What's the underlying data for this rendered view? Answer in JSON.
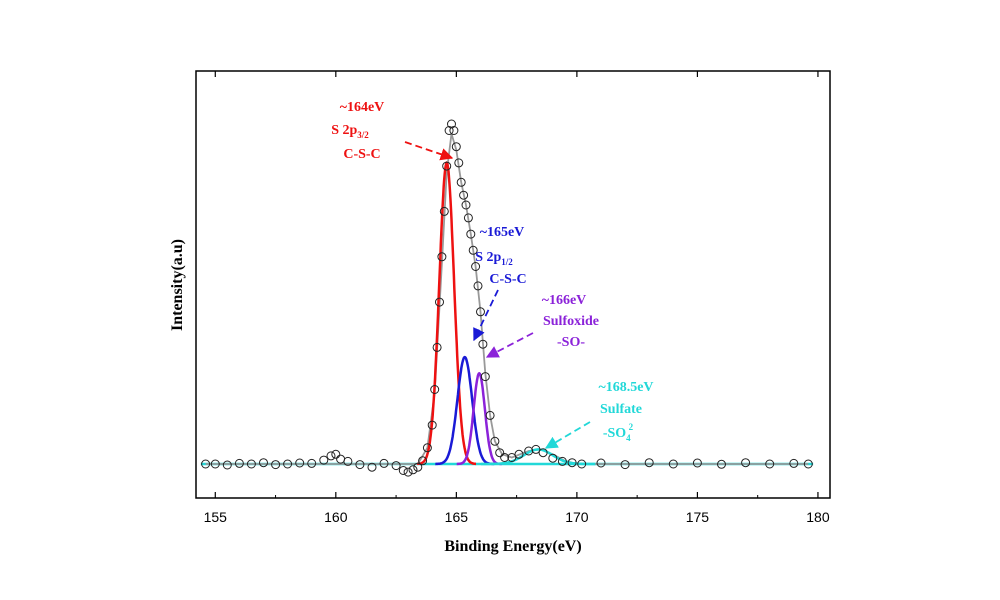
{
  "chart_data": {
    "type": "line",
    "title": "",
    "xlabel": "Binding Energy(eV)",
    "ylabel": "Intensity(a.u)",
    "xlim": [
      154.2,
      180.5
    ],
    "ylim": [
      -0.06,
      1.25
    ],
    "x_ticks": [
      155,
      160,
      165,
      170,
      175,
      180
    ],
    "x_tick_labels": [
      "155",
      "160",
      "165",
      "170",
      "175",
      "180"
    ],
    "y_ticks_shown": false,
    "grid": false,
    "legend": "none",
    "series": [
      {
        "role": "raw-data",
        "marker": "open-circle",
        "color": "#222222",
        "x": [
          154.6,
          155.0,
          155.5,
          156.0,
          156.5,
          157.0,
          157.5,
          158.0,
          158.5,
          159.0,
          159.5,
          159.8,
          160.0,
          160.2,
          160.5,
          161.0,
          161.5,
          162.0,
          162.5,
          162.8,
          163.0,
          163.2,
          163.4,
          163.6,
          163.8,
          164.0,
          164.1,
          164.2,
          164.3,
          164.4,
          164.5,
          164.6,
          164.7,
          164.8,
          164.9,
          165.0,
          165.1,
          165.2,
          165.3,
          165.4,
          165.5,
          165.6,
          165.7,
          165.8,
          165.9,
          166.0,
          166.1,
          166.2,
          166.4,
          166.6,
          166.8,
          167.0,
          167.3,
          167.6,
          168.0,
          168.3,
          168.6,
          169.0,
          169.4,
          169.8,
          170.2,
          171.0,
          172.0,
          173.0,
          174.0,
          175.0,
          176.0,
          177.0,
          178.0,
          179.0,
          179.6
        ],
        "y": [
          0.0,
          0.0,
          -0.003,
          0.002,
          0.0,
          0.004,
          -0.002,
          0.0,
          0.003,
          0.002,
          0.012,
          0.025,
          0.03,
          0.015,
          0.008,
          -0.002,
          -0.01,
          0.002,
          -0.005,
          -0.02,
          -0.025,
          -0.018,
          -0.01,
          0.01,
          0.05,
          0.12,
          0.23,
          0.36,
          0.5,
          0.64,
          0.78,
          0.92,
          1.03,
          1.05,
          1.03,
          0.98,
          0.93,
          0.87,
          0.83,
          0.8,
          0.76,
          0.71,
          0.66,
          0.61,
          0.55,
          0.47,
          0.37,
          0.27,
          0.15,
          0.07,
          0.035,
          0.02,
          0.02,
          0.03,
          0.04,
          0.045,
          0.035,
          0.018,
          0.008,
          0.004,
          0.0,
          0.003,
          -0.002,
          0.004,
          0.0,
          0.003,
          -0.001,
          0.004,
          0.0,
          0.002,
          0.0
        ]
      },
      {
        "role": "envelope-fit",
        "color": "#999999",
        "x": [
          154.6,
          163.4,
          163.8,
          164.1,
          164.4,
          164.6,
          164.8,
          165.0,
          165.2,
          165.4,
          165.6,
          165.8,
          166.0,
          166.2,
          166.4,
          166.6,
          166.9,
          167.3,
          168.0,
          168.5,
          169.0,
          169.5,
          170.0,
          179.6
        ],
        "y": [
          0.0,
          0.0,
          0.05,
          0.22,
          0.62,
          0.9,
          1.02,
          0.97,
          0.87,
          0.8,
          0.71,
          0.61,
          0.47,
          0.28,
          0.15,
          0.07,
          0.03,
          0.02,
          0.04,
          0.045,
          0.03,
          0.01,
          0.0,
          0.0
        ]
      },
      {
        "role": "peak-fit",
        "label_lines": [
          "~164eV",
          "S 2p3/2",
          "C-S-C"
        ],
        "color": "#ee1111",
        "center": 164.6,
        "height": 0.93,
        "fwhm": 0.72
      },
      {
        "role": "peak-fit",
        "label_lines": [
          "~165eV",
          "S 2p1/2",
          "C-S-C"
        ],
        "color": "#1a1ad6",
        "center": 165.35,
        "height": 0.33,
        "fwhm": 0.72
      },
      {
        "role": "peak-fit",
        "label_lines": [
          "~166eV",
          "Sulfoxide",
          "-SO-"
        ],
        "color": "#8b22d9",
        "center": 165.95,
        "height": 0.28,
        "fwhm": 0.55
      },
      {
        "role": "peak-fit",
        "label_lines": [
          "~168.5eV",
          "Sulfate",
          "-SO42-"
        ],
        "color": "#22d8d8",
        "center": 168.4,
        "height": 0.045,
        "fwhm": 1.4
      }
    ],
    "annotations": [
      {
        "lines": [
          "~164eV",
          "S 2p",
          "C-S-C"
        ],
        "sub": "3/2",
        "color": "#ee1111"
      },
      {
        "lines": [
          "~165eV",
          "S 2p",
          "C-S-C"
        ],
        "sub": "1/2",
        "color": "#1a1ad6"
      },
      {
        "lines": [
          "~166eV",
          "Sulfoxide",
          "-SO-"
        ],
        "color": "#8b22d9"
      },
      {
        "lines": [
          "~168.5eV",
          "Sulfate",
          "-SO"
        ],
        "sub": "4",
        "sup": "2",
        "color": "#22d8d8"
      }
    ]
  }
}
